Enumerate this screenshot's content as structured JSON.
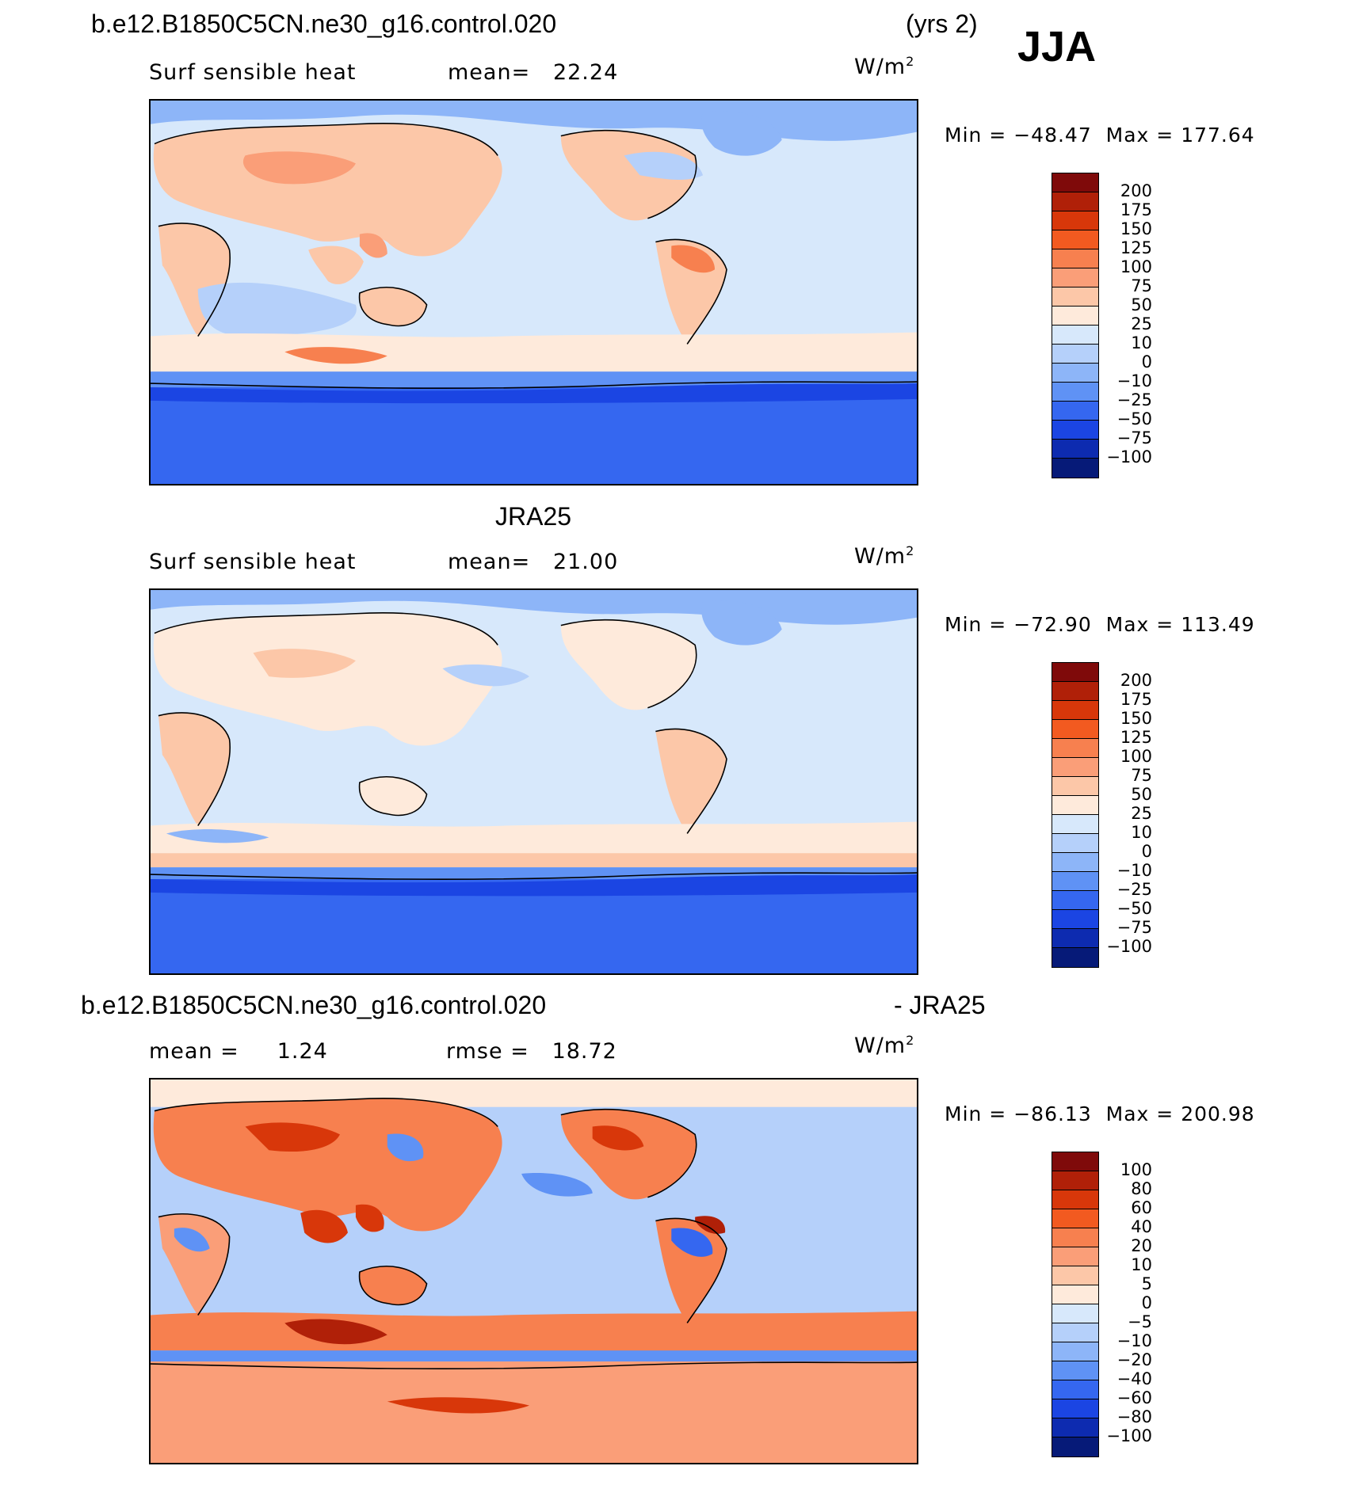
{
  "header": {
    "case_name": "b.e12.B1850C5CN.ne30_g16.control.020",
    "years": "(yrs 2)",
    "season": "JJA"
  },
  "panels": [
    {
      "title": "",
      "left": "Surf  sensible  heat",
      "mid_label": "mean=",
      "mid_value": "22.24",
      "units_base": "W/m",
      "units_exp": "2",
      "min_label": "Min  =",
      "min_value": "−48.47",
      "max_label": "Max  =",
      "max_value": "177.64"
    },
    {
      "title": "JRA25",
      "left": "Surf  sensible  heat",
      "mid_label": "mean=",
      "mid_value": "21.00",
      "units_base": "W/m",
      "units_exp": "2",
      "min_label": "Min  =",
      "min_value": "−72.90",
      "max_label": "Max  =",
      "max_value": "113.49"
    },
    {
      "title": "b.e12.B1850C5CN.ne30_g16.control.020",
      "title_right": "- JRA25",
      "left_label": "mean  =",
      "left_value": "1.24",
      "mid_label": "rmse  =",
      "mid_value": "18.72",
      "units_base": "W/m",
      "units_exp": "2",
      "min_label": "Min  =",
      "min_value": "−86.13",
      "max_label": "Max  =",
      "max_value": "200.98"
    }
  ],
  "colorbars": [
    {
      "colors": [
        "#7f0a0a",
        "#b02008",
        "#d8370a",
        "#f25a20",
        "#f7804f",
        "#fa9e78",
        "#fcc7a8",
        "#feeadb",
        "#d7e8fb",
        "#b5d0fa",
        "#8db5f8",
        "#5f92f5",
        "#3567f0",
        "#1b45e3",
        "#0d2bb0",
        "#061a78"
      ],
      "labels": [
        "200",
        "175",
        "150",
        "125",
        "100",
        "75",
        "50",
        "25",
        "10",
        "0",
        "−10",
        "−25",
        "−50",
        "−75",
        "−100"
      ]
    },
    {
      "colors": [
        "#7f0a0a",
        "#b02008",
        "#d8370a",
        "#f25a20",
        "#f7804f",
        "#fa9e78",
        "#fcc7a8",
        "#feeadb",
        "#d7e8fb",
        "#b5d0fa",
        "#8db5f8",
        "#5f92f5",
        "#3567f0",
        "#1b45e3",
        "#0d2bb0",
        "#061a78"
      ],
      "labels": [
        "200",
        "175",
        "150",
        "125",
        "100",
        "75",
        "50",
        "25",
        "10",
        "0",
        "−10",
        "−25",
        "−50",
        "−75",
        "−100"
      ]
    },
    {
      "colors": [
        "#7f0a0a",
        "#b02008",
        "#d8370a",
        "#f25a20",
        "#f7804f",
        "#fa9e78",
        "#fcc7a8",
        "#feeadb",
        "#d7e8fb",
        "#b5d0fa",
        "#8db5f8",
        "#5f92f5",
        "#3567f0",
        "#1b45e3",
        "#0d2bb0",
        "#061a78"
      ],
      "labels": [
        "100",
        "80",
        "60",
        "40",
        "20",
        "10",
        "5",
        "0",
        "−5",
        "−10",
        "−20",
        "−40",
        "−60",
        "−80",
        "−100"
      ]
    }
  ]
}
